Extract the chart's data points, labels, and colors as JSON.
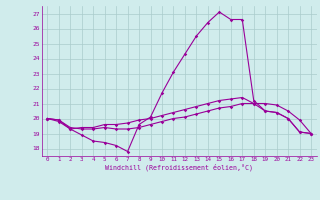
{
  "x": [
    0,
    1,
    2,
    3,
    4,
    5,
    6,
    7,
    8,
    9,
    10,
    11,
    12,
    13,
    14,
    15,
    16,
    17,
    18,
    19,
    20,
    21,
    22,
    23
  ],
  "line1": [
    20.0,
    19.8,
    19.3,
    18.9,
    18.5,
    18.4,
    18.2,
    17.8,
    19.6,
    20.1,
    21.7,
    23.1,
    24.3,
    25.5,
    26.4,
    27.1,
    26.6,
    26.6,
    21.2,
    20.5,
    20.4,
    20.0,
    19.1,
    19.0
  ],
  "line2": [
    20.0,
    19.9,
    19.4,
    19.3,
    19.3,
    19.4,
    19.3,
    19.3,
    19.4,
    19.6,
    19.8,
    20.0,
    20.1,
    20.3,
    20.5,
    20.7,
    20.8,
    21.0,
    21.0,
    21.0,
    20.9,
    20.5,
    19.9,
    19.0
  ],
  "line3": [
    20.0,
    19.9,
    19.3,
    19.4,
    19.4,
    19.6,
    19.6,
    19.7,
    19.9,
    20.0,
    20.2,
    20.4,
    20.6,
    20.8,
    21.0,
    21.2,
    21.3,
    21.4,
    21.0,
    20.5,
    20.4,
    20.0,
    19.1,
    19.0
  ],
  "color": "#990099",
  "bg_color": "#d0ecec",
  "grid_color": "#aacccc",
  "xlabel": "Windchill (Refroidissement éolien,°C)",
  "ylabel_ticks": [
    18,
    19,
    20,
    21,
    22,
    23,
    24,
    25,
    26,
    27
  ],
  "xtick_labels": [
    "0",
    "1",
    "2",
    "3",
    "4",
    "5",
    "6",
    "7",
    "8",
    "9",
    "10",
    "11",
    "12",
    "13",
    "14",
    "15",
    "16",
    "17",
    "18",
    "19",
    "20",
    "21",
    "22",
    "23"
  ],
  "ylim": [
    17.5,
    27.5
  ],
  "xlim": [
    -0.5,
    23.5
  ]
}
